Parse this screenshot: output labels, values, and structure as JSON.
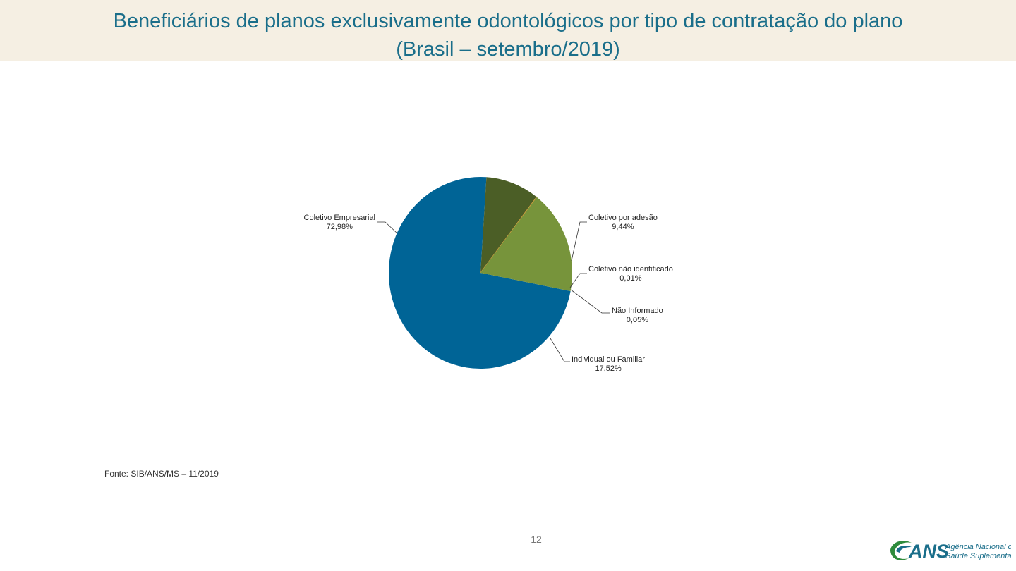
{
  "header": {
    "title_line1": "Beneficiários de planos exclusivamente odontológicos por tipo de contratação do plano",
    "title_line2": "(Brasil – setembro/2019)"
  },
  "chart_data": {
    "type": "pie",
    "title": "Beneficiários de planos exclusivamente odontológicos por tipo de contratação do plano (Brasil – setembro/2019)",
    "slices": [
      {
        "name": "Coletivo Empresarial",
        "value": 72.98,
        "label": "72,98%",
        "color": "#006496"
      },
      {
        "name": "Coletivo por adesão",
        "value": 9.44,
        "label": "9,44%",
        "color": "#4b5e26"
      },
      {
        "name": "Coletivo não identificado",
        "value": 0.01,
        "label": "0,01%",
        "color": "#b9624a"
      },
      {
        "name": "Não Informado",
        "value": 0.05,
        "label": "0,05%",
        "color": "#c8a23c"
      },
      {
        "name": "Individual ou Familiar",
        "value": 17.52,
        "label": "17,52%",
        "color": "#77943b"
      }
    ]
  },
  "footer": {
    "source": "Fonte: SIB/ANS/MS – 11/2019",
    "page_number": "12",
    "logo": {
      "name": "ans-logo",
      "text_main": "ANS",
      "text_sub1": "Agência Nacional de",
      "text_sub2": "Saúde Suplementar",
      "color_green": "#2e8b3c",
      "color_blue": "#1a6e8a"
    }
  }
}
